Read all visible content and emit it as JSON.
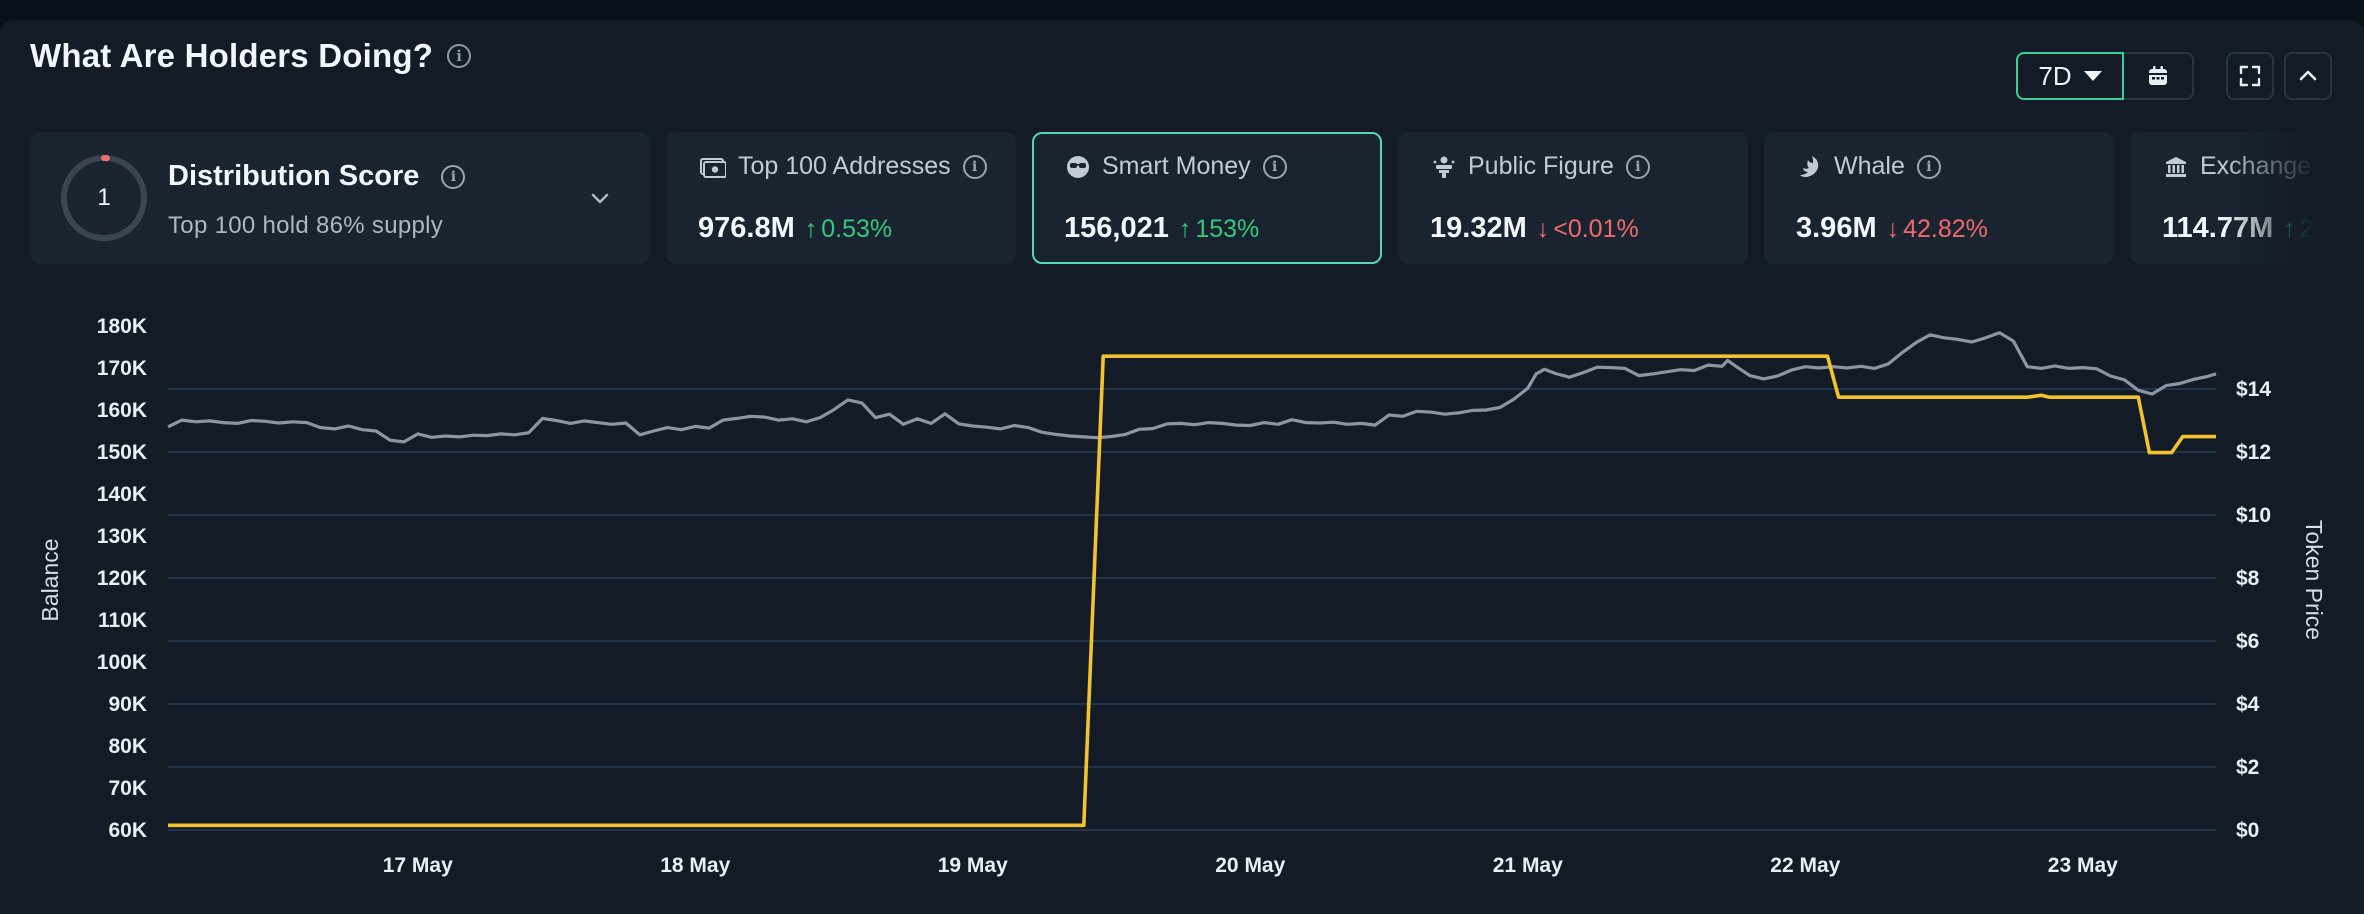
{
  "header": {
    "title": "What Are Holders Doing?",
    "range_label": "7D"
  },
  "colors": {
    "accent": "#2fd39a",
    "balance_line": "#8c96a3",
    "price_line": "#f2c230",
    "up": "#34c97e",
    "down": "#f06a6a",
    "ring": "#f26d6d"
  },
  "distribution": {
    "title": "Distribution Score",
    "score": "1",
    "score_fraction": 0.01,
    "subtitle": "Top 100 hold 86% supply"
  },
  "cards": [
    {
      "id": "top100",
      "label": "Top 100 Addresses",
      "icon": "cash-icon",
      "value": "976.8M",
      "change": "0.53%",
      "direction": "up",
      "active": false
    },
    {
      "id": "smart-money",
      "label": "Smart Money",
      "icon": "sunglasses-icon",
      "value": "156,021",
      "change": "153%",
      "direction": "up",
      "active": true
    },
    {
      "id": "public-figure",
      "label": "Public Figure",
      "icon": "podium-icon",
      "value": "19.32M",
      "change": "<0.01%",
      "direction": "down",
      "active": false
    },
    {
      "id": "whale",
      "label": "Whale",
      "icon": "whale-icon",
      "value": "3.96M",
      "change": "42.82%",
      "direction": "down",
      "active": false
    },
    {
      "id": "exchange",
      "label": "Exchange",
      "icon": "bank-icon",
      "value": "114.77M",
      "change": "2",
      "direction": "up",
      "active": false
    }
  ],
  "chart_data": {
    "type": "line",
    "ylabel": "Balance",
    "y2label": "Token Price",
    "ylim": [
      60000,
      180000
    ],
    "y2lim": [
      0,
      16
    ],
    "yticks": [
      "60K",
      "70K",
      "80K",
      "90K",
      "100K",
      "110K",
      "120K",
      "130K",
      "140K",
      "150K",
      "160K",
      "170K",
      "180K"
    ],
    "y2ticks": [
      "$0",
      "$2",
      "$4",
      "$6",
      "$8",
      "$10",
      "$12",
      "$14"
    ],
    "xlim": [
      16.1,
      23.48
    ],
    "xticks": [
      {
        "x": 17,
        "label": "17 May"
      },
      {
        "x": 18,
        "label": "18 May"
      },
      {
        "x": 19,
        "label": "19 May"
      },
      {
        "x": 20,
        "label": "20 May"
      },
      {
        "x": 21,
        "label": "21 May"
      },
      {
        "x": 22,
        "label": "22 May"
      },
      {
        "x": 23,
        "label": "23 May"
      }
    ],
    "grid": true,
    "series": [
      {
        "axis": "left",
        "points": [
          [
            16.1,
            156000
          ],
          [
            16.15,
            157600
          ],
          [
            16.2,
            157200
          ],
          [
            16.25,
            157400
          ],
          [
            16.3,
            157000
          ],
          [
            16.35,
            156800
          ],
          [
            16.4,
            157500
          ],
          [
            16.45,
            157300
          ],
          [
            16.5,
            156900
          ],
          [
            16.55,
            157200
          ],
          [
            16.6,
            157000
          ],
          [
            16.65,
            155800
          ],
          [
            16.7,
            155500
          ],
          [
            16.75,
            156200
          ],
          [
            16.8,
            155300
          ],
          [
            16.85,
            155000
          ],
          [
            16.9,
            152800
          ],
          [
            16.95,
            152400
          ],
          [
            17.0,
            154300
          ],
          [
            17.05,
            153500
          ],
          [
            17.1,
            153800
          ],
          [
            17.15,
            153600
          ],
          [
            17.2,
            154000
          ],
          [
            17.25,
            153900
          ],
          [
            17.3,
            154300
          ],
          [
            17.35,
            154100
          ],
          [
            17.4,
            154600
          ],
          [
            17.45,
            158000
          ],
          [
            17.5,
            157500
          ],
          [
            17.55,
            156800
          ],
          [
            17.6,
            157400
          ],
          [
            17.65,
            157000
          ],
          [
            17.7,
            156600
          ],
          [
            17.75,
            156900
          ],
          [
            17.8,
            154100
          ],
          [
            17.85,
            155000
          ],
          [
            17.9,
            155800
          ],
          [
            17.95,
            155300
          ],
          [
            18.0,
            156100
          ],
          [
            18.05,
            155700
          ],
          [
            18.1,
            157600
          ],
          [
            18.15,
            158000
          ],
          [
            18.2,
            158500
          ],
          [
            18.25,
            158300
          ],
          [
            18.3,
            157600
          ],
          [
            18.35,
            157900
          ],
          [
            18.4,
            157200
          ],
          [
            18.45,
            158200
          ],
          [
            18.5,
            160100
          ],
          [
            18.55,
            162400
          ],
          [
            18.6,
            161700
          ],
          [
            18.65,
            158200
          ],
          [
            18.7,
            159000
          ],
          [
            18.75,
            156600
          ],
          [
            18.8,
            157900
          ],
          [
            18.85,
            156800
          ],
          [
            18.9,
            159100
          ],
          [
            18.95,
            156700
          ],
          [
            19.0,
            156200
          ],
          [
            19.05,
            155900
          ],
          [
            19.1,
            155500
          ],
          [
            19.15,
            156300
          ],
          [
            19.2,
            155800
          ],
          [
            19.25,
            154700
          ],
          [
            19.3,
            154200
          ],
          [
            19.35,
            153800
          ],
          [
            19.4,
            153600
          ],
          [
            19.45,
            153400
          ],
          [
            19.5,
            153700
          ],
          [
            19.55,
            154200
          ],
          [
            19.6,
            155400
          ],
          [
            19.65,
            155600
          ],
          [
            19.7,
            156700
          ],
          [
            19.75,
            156800
          ],
          [
            19.8,
            156500
          ],
          [
            19.85,
            157000
          ],
          [
            19.9,
            156800
          ],
          [
            19.95,
            156400
          ],
          [
            20.0,
            156300
          ],
          [
            20.05,
            157000
          ],
          [
            20.1,
            156600
          ],
          [
            20.15,
            157700
          ],
          [
            20.2,
            157000
          ],
          [
            20.25,
            156900
          ],
          [
            20.3,
            157100
          ],
          [
            20.35,
            156600
          ],
          [
            20.4,
            156800
          ],
          [
            20.45,
            156400
          ],
          [
            20.5,
            158800
          ],
          [
            20.55,
            158500
          ],
          [
            20.6,
            159700
          ],
          [
            20.65,
            159500
          ],
          [
            20.7,
            159000
          ],
          [
            20.75,
            159300
          ],
          [
            20.8,
            159900
          ],
          [
            20.85,
            160000
          ],
          [
            20.9,
            160600
          ],
          [
            20.95,
            162600
          ],
          [
            21.0,
            165200
          ],
          [
            21.03,
            168600
          ],
          [
            21.06,
            169700
          ],
          [
            21.1,
            168700
          ],
          [
            21.15,
            167800
          ],
          [
            21.2,
            168900
          ],
          [
            21.25,
            170200
          ],
          [
            21.3,
            170100
          ],
          [
            21.35,
            169900
          ],
          [
            21.4,
            168200
          ],
          [
            21.45,
            168600
          ],
          [
            21.5,
            169100
          ],
          [
            21.55,
            169600
          ],
          [
            21.6,
            169400
          ],
          [
            21.65,
            170700
          ],
          [
            21.7,
            170400
          ],
          [
            21.72,
            171800
          ],
          [
            21.75,
            170400
          ],
          [
            21.8,
            168200
          ],
          [
            21.85,
            167400
          ],
          [
            21.9,
            168100
          ],
          [
            21.95,
            169500
          ],
          [
            22.0,
            170300
          ],
          [
            22.05,
            170000
          ],
          [
            22.1,
            170300
          ],
          [
            22.15,
            170000
          ],
          [
            22.2,
            170400
          ],
          [
            22.25,
            169900
          ],
          [
            22.3,
            171000
          ],
          [
            22.35,
            173700
          ],
          [
            22.4,
            176100
          ],
          [
            22.45,
            177900
          ],
          [
            22.5,
            177200
          ],
          [
            22.55,
            176800
          ],
          [
            22.6,
            176200
          ],
          [
            22.65,
            177200
          ],
          [
            22.7,
            178400
          ],
          [
            22.75,
            176400
          ],
          [
            22.8,
            170300
          ],
          [
            22.85,
            169900
          ],
          [
            22.9,
            170500
          ],
          [
            22.95,
            169900
          ],
          [
            23.0,
            170100
          ],
          [
            23.05,
            169800
          ],
          [
            23.1,
            168100
          ],
          [
            23.15,
            167200
          ],
          [
            23.2,
            164700
          ],
          [
            23.25,
            163800
          ],
          [
            23.3,
            165800
          ],
          [
            23.35,
            166300
          ],
          [
            23.4,
            167300
          ],
          [
            23.45,
            168000
          ],
          [
            23.48,
            168600
          ]
        ]
      },
      {
        "axis": "right",
        "points": [
          [
            16.1,
            0.15
          ],
          [
            19.4,
            0.15
          ],
          [
            19.47,
            15.04
          ],
          [
            22.08,
            15.04
          ],
          [
            22.12,
            13.74
          ],
          [
            22.8,
            13.74
          ],
          [
            22.85,
            13.8
          ],
          [
            22.88,
            13.74
          ],
          [
            23.2,
            13.74
          ],
          [
            23.24,
            11.98
          ],
          [
            23.32,
            11.98
          ],
          [
            23.36,
            12.49
          ],
          [
            23.48,
            12.49
          ]
        ]
      }
    ]
  }
}
